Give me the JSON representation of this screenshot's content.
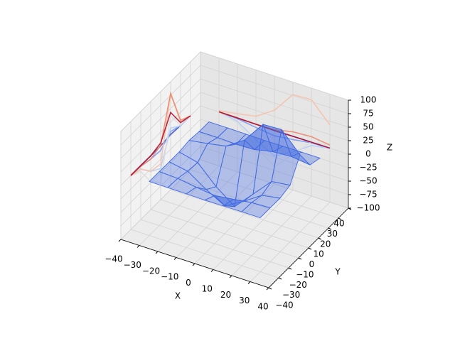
{
  "chart_data": {
    "type": "surface3d",
    "xlabel": "X",
    "ylabel": "Y",
    "zlabel": "Z",
    "xlim": [
      -40,
      40
    ],
    "ylim": [
      -40,
      40
    ],
    "zlim": [
      -100,
      100
    ],
    "xticks": [
      {
        "value": -40,
        "label": "−40"
      },
      {
        "value": -30,
        "label": "−30"
      },
      {
        "value": -20,
        "label": "−20"
      },
      {
        "value": -10,
        "label": "−10"
      },
      0,
      10,
      20,
      30,
      40
    ],
    "yticks": [
      {
        "value": -40,
        "label": "−40"
      },
      {
        "value": -30,
        "label": "−30"
      },
      {
        "value": -20,
        "label": "−20"
      },
      {
        "value": -10,
        "label": "−10"
      },
      0,
      10,
      20,
      30,
      40
    ],
    "zticks": [
      {
        "value": -100,
        "label": "−100"
      },
      {
        "value": -75,
        "label": "−75"
      },
      {
        "value": -50,
        "label": "−50"
      },
      {
        "value": -25,
        "label": "−25"
      },
      0,
      25,
      50,
      75,
      100
    ],
    "x": [
      -30,
      -20,
      -10,
      0,
      10,
      20,
      30
    ],
    "y": [
      -30,
      -20,
      -10,
      0,
      10,
      20,
      30
    ],
    "z": [
      [
        0,
        -0.1,
        -0.5,
        -0.9,
        -0.5,
        -0.1,
        0
      ],
      [
        -0.1,
        -1.5,
        -6.5,
        -10.8,
        -6.5,
        -1.5,
        -0.1
      ],
      [
        -0.5,
        -6.5,
        -29.3,
        -48.2,
        -29.2,
        -6.5,
        -0.5
      ],
      [
        -0.5,
        -8.8,
        -42.4,
        -68.1,
        -33.9,
        0.7,
        5.0
      ],
      [
        2.5,
        7.8,
        14.3,
        36.7,
        76.8,
        78.5,
        43.1
      ],
      [
        0.3,
        0.5,
        -0.6,
        0.7,
        7.8,
        10.0,
        5.8
      ],
      [
        0,
        -0.1,
        -0.5,
        -0.9,
        -0.5,
        -0.1,
        0
      ]
    ],
    "color": "#4169e1",
    "grid": true
  }
}
